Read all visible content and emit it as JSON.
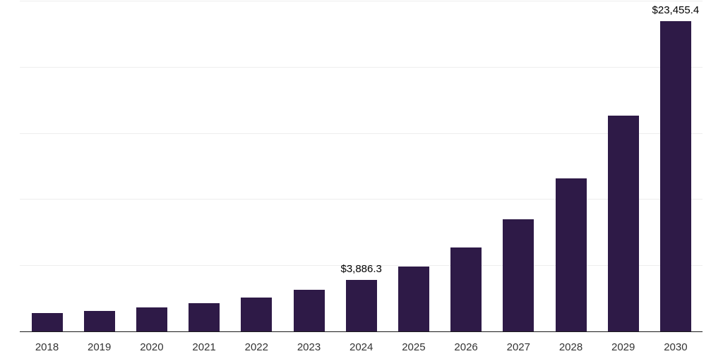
{
  "chart_data": {
    "type": "bar",
    "title": "",
    "xlabel": "",
    "ylabel": "",
    "categories": [
      "2018",
      "2019",
      "2020",
      "2021",
      "2022",
      "2023",
      "2024",
      "2025",
      "2026",
      "2027",
      "2028",
      "2029",
      "2030"
    ],
    "values": [
      1390,
      1560,
      1820,
      2140,
      2560,
      3140,
      3886.3,
      4900,
      6350,
      8470,
      11550,
      16300,
      23455.4
    ],
    "data_labels": [
      {
        "category": "2024",
        "text": "$3,886.3"
      },
      {
        "category": "2030",
        "text": "$23,455.4"
      }
    ],
    "ylim": [
      0,
      25000
    ],
    "grid_interval": 5000,
    "grid": "horizontal",
    "legend": "none",
    "bar_color": "#2e1a47",
    "gridline_color": "#eeeeee",
    "axis_line_color": "#1a1a1a",
    "x_label_color": "#333333",
    "data_label_color": "#000000"
  }
}
